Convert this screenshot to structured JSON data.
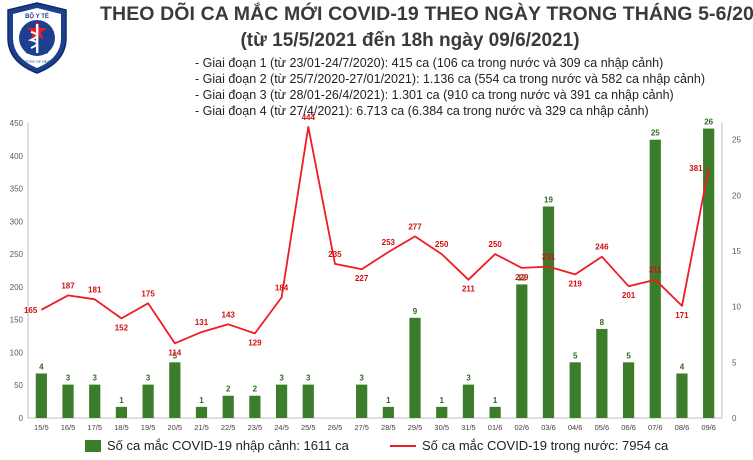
{
  "header": {
    "logo_text_top": "BỘ Y TẾ",
    "logo_text_bottom": "MINISTRY OF HEALTH",
    "title": "THEO DÕI CA MẮC MỚI COVID-19 THEO NGÀY TRONG THÁNG 5-6/2021",
    "subtitle": "(từ 15/5/2021 đến 18h ngày 09/6/2021)",
    "notes": [
      "- Giai đoạn 1 (từ 23/01-24/7/2020): 415 ca (106 ca trong nước và 309 ca nhập cảnh)",
      "- Giai đoạn 2 (từ 25/7/2020-27/01/2021): 1.136 ca (554 ca trong nước và 582 ca nhập cảnh)",
      "- Giai đoạn 3 (từ 28/01-26/4/2021): 1.301 ca (910 ca trong nước và 391 ca nhập cảnh)",
      "- Giai đoạn 4 (từ 27/4/2021): 6.713 ca (6.384 ca trong nước và 329 ca nhập cảnh)"
    ]
  },
  "colors": {
    "bar": "#3c7d2c",
    "line": "#ee1c24",
    "bar_label": "#2f6b22",
    "line_label": "#d01010"
  },
  "chart_data": {
    "type": "bar",
    "categories": [
      "15/5",
      "16/5",
      "17/5",
      "18/5",
      "19/5",
      "20/5",
      "21/5",
      "22/5",
      "23/5",
      "24/5",
      "25/5",
      "26/5",
      "27/5",
      "28/5",
      "29/5",
      "30/5",
      "31/5",
      "01/6",
      "02/6",
      "03/6",
      "04/6",
      "05/6",
      "06/6",
      "07/6",
      "08/6",
      "09/6"
    ],
    "series": [
      {
        "name": "Số ca mắc COVID-19 nhập cảnh: 1611 ca",
        "type": "bar",
        "axis": "right",
        "values": [
          4,
          3,
          3,
          1,
          3,
          5,
          1,
          2,
          2,
          3,
          3,
          0,
          3,
          1,
          9,
          1,
          3,
          1,
          12,
          19,
          5,
          8,
          5,
          25,
          4,
          26
        ]
      },
      {
        "name": "Số ca mắc COVID-19 trong nước: 7954 ca",
        "type": "line",
        "axis": "left",
        "values": [
          165,
          187,
          181,
          152,
          175,
          114,
          131,
          143,
          129,
          184,
          444,
          235,
          227,
          253,
          277,
          250,
          211,
          250,
          229,
          231,
          219,
          246,
          201,
          211,
          171,
          381
        ]
      }
    ],
    "bar_labels": [
      "4",
      "3",
      "3",
      "1",
      "3",
      "5",
      "1",
      "2",
      "2",
      "3",
      "3",
      "",
      "3",
      "1",
      "9",
      "1",
      "3",
      "1",
      "12",
      "19",
      "5",
      "8",
      "5",
      "25",
      "4",
      "26"
    ],
    "line_labels": [
      "165",
      "187",
      "181",
      "152",
      "175",
      "114",
      "131",
      "143",
      "129",
      "184",
      "444",
      "235",
      "227",
      "253",
      "277",
      "250",
      "211",
      "250",
      "229",
      "231",
      "219",
      "246",
      "201",
      "211",
      "171",
      "381"
    ],
    "ylim_left": [
      0,
      450
    ],
    "yticks_left": [
      "0",
      "50",
      "100",
      "150",
      "200",
      "250",
      "300",
      "350",
      "400",
      "450"
    ],
    "ylim_right": [
      0,
      26.5
    ],
    "yticks_right": [
      "0",
      "5",
      "10",
      "15",
      "20",
      "25"
    ],
    "grid": false,
    "legend_position": "bottom"
  }
}
